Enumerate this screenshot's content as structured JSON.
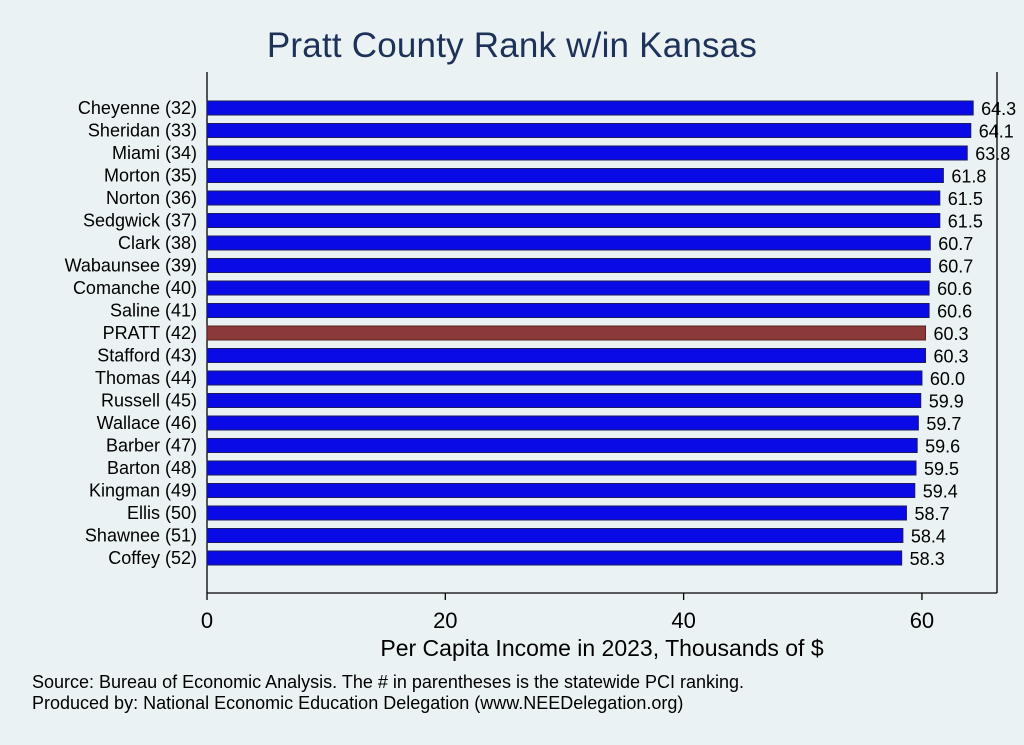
{
  "chart_data": {
    "type": "bar",
    "orientation": "horizontal",
    "title": "Pratt County Rank w/in Kansas",
    "xlabel": "Per Capita Income in 2023, Thousands of $",
    "ylabel": "",
    "xlim": [
      0,
      66.3
    ],
    "xticks": [
      0,
      20,
      40,
      60
    ],
    "grid": false,
    "categories": [
      "Cheyenne (32)",
      "Sheridan (33)",
      "Miami (34)",
      "Morton (35)",
      "Norton (36)",
      "Sedgwick (37)",
      "Clark (38)",
      "Wabaunsee (39)",
      "Comanche (40)",
      "Saline (41)",
      "PRATT (42)",
      "Stafford (43)",
      "Thomas (44)",
      "Russell (45)",
      "Wallace (46)",
      "Barber (47)",
      "Barton (48)",
      "Kingman (49)",
      "Ellis (50)",
      "Shawnee (51)",
      "Coffey (52)"
    ],
    "values": [
      64.3,
      64.1,
      63.8,
      61.8,
      61.5,
      61.5,
      60.7,
      60.7,
      60.6,
      60.6,
      60.3,
      60.3,
      60.0,
      59.9,
      59.7,
      59.6,
      59.5,
      59.4,
      58.7,
      58.4,
      58.3
    ],
    "value_labels": [
      "64.3",
      "64.1",
      "63.8",
      "61.8",
      "61.5",
      "61.5",
      "60.7",
      "60.7",
      "60.6",
      "60.6",
      "60.3",
      "60.3",
      "60.0",
      "59.9",
      "59.7",
      "59.6",
      "59.5",
      "59.4",
      "58.7",
      "58.4",
      "58.3"
    ],
    "highlight_category": "PRATT (42)",
    "colors": {
      "bar": "#0a0ae6",
      "bar_edge": "#1a1a60",
      "highlight": "#8b3a3a",
      "highlight_edge": "#5a2020",
      "background": "#eaf2f3",
      "title": "#1e3158"
    }
  },
  "footer": {
    "source": "Source: Bureau of Economic Analysis. The # in parentheses is the statewide PCI ranking.",
    "produced_by": "Produced by: National Economic Education Delegation (www.NEEDelegation.org)"
  }
}
